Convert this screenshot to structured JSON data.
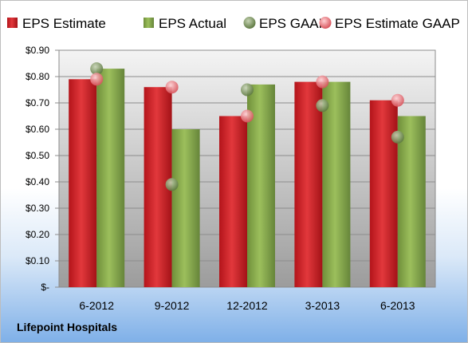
{
  "company": "Lifepoint Hospitals",
  "chart_data": {
    "type": "bar",
    "categories": [
      "6-2012",
      "9-2012",
      "12-2012",
      "3-2013",
      "6-2013"
    ],
    "series": [
      {
        "name": "EPS Estimate",
        "kind": "bar",
        "color": "#cc1f25",
        "values": [
          0.79,
          0.76,
          0.65,
          0.78,
          0.71
        ]
      },
      {
        "name": "EPS Actual",
        "kind": "bar",
        "color": "#88a84a",
        "values": [
          0.83,
          0.6,
          0.77,
          0.78,
          0.65
        ]
      },
      {
        "name": "EPS GAAP",
        "kind": "marker",
        "color": "#7d9a59",
        "values": [
          0.83,
          0.39,
          0.75,
          0.69,
          0.57
        ]
      },
      {
        "name": "EPS Estimate GAAP",
        "kind": "marker",
        "color": "#e6737a",
        "values": [
          0.79,
          0.76,
          0.65,
          0.78,
          0.71
        ]
      }
    ],
    "ylim": [
      0,
      0.9
    ],
    "yticks": [
      0,
      0.1,
      0.2,
      0.3,
      0.4,
      0.5,
      0.6,
      0.7,
      0.8,
      0.9
    ],
    "ytick_labels": [
      "$-",
      "$0.10",
      "$0.20",
      "$0.30",
      "$0.40",
      "$0.50",
      "$0.60",
      "$0.70",
      "$0.80",
      "$0.90"
    ],
    "legend_position": "top",
    "grid": true
  }
}
